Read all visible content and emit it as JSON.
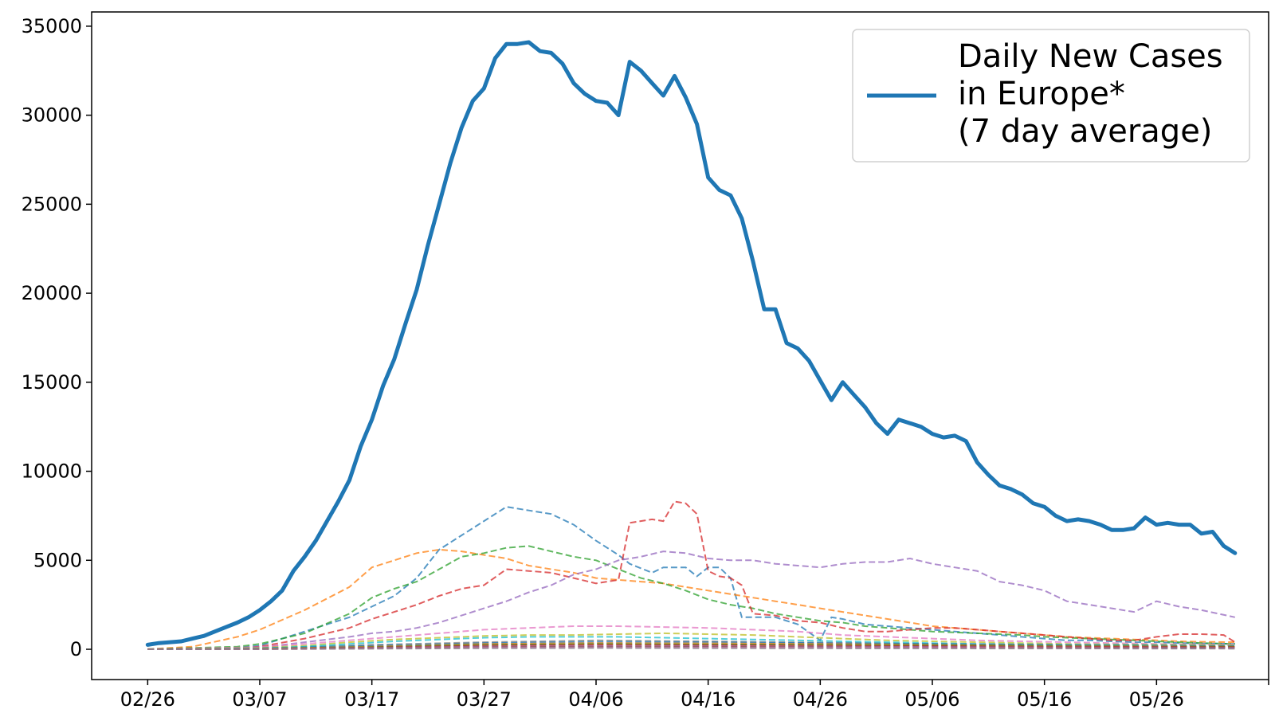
{
  "chart_data": {
    "type": "line",
    "title": "",
    "xlabel": "",
    "ylabel": "",
    "x_tick_labels": [
      "02/26",
      "03/07",
      "03/17",
      "03/27",
      "04/06",
      "04/16",
      "04/26",
      "05/06",
      "05/16",
      "05/26"
    ],
    "x_tick_days": [
      0,
      10,
      20,
      30,
      40,
      50,
      60,
      70,
      80,
      90
    ],
    "xlim": [
      -5,
      100
    ],
    "y_ticks": [
      0,
      5000,
      10000,
      15000,
      20000,
      25000,
      30000,
      35000
    ],
    "y_tick_labels": [
      "0",
      "5000",
      "10000",
      "15000",
      "20000",
      "25000",
      "30000",
      "35000"
    ],
    "ylim": [
      -1700,
      35800
    ],
    "grid": false,
    "legend": {
      "position": "top-right",
      "lines": [
        "Daily New Cases",
        "in Europe*",
        "(7 day average)"
      ]
    },
    "main_series": {
      "name": "Daily New Cases in Europe* (7 day average)",
      "color": "#1f77b4",
      "x": [
        0,
        1,
        2,
        3,
        4,
        5,
        6,
        7,
        8,
        9,
        10,
        11,
        12,
        13,
        14,
        15,
        16,
        17,
        18,
        19,
        20,
        21,
        22,
        23,
        24,
        25,
        26,
        27,
        28,
        29,
        30,
        31,
        32,
        33,
        34,
        35,
        36,
        37,
        38,
        39,
        40,
        41,
        42,
        43,
        44,
        45,
        46,
        47,
        48,
        49,
        50,
        51,
        52,
        53,
        54,
        55,
        56,
        57,
        58,
        59,
        60,
        61,
        62,
        63,
        64,
        65,
        66,
        67,
        68,
        69,
        70,
        71,
        72,
        73,
        74,
        75,
        76,
        77,
        78,
        79,
        80,
        81,
        82,
        83,
        84,
        85,
        86,
        87,
        88,
        89,
        90,
        91,
        92,
        93,
        94,
        95,
        96,
        97
      ],
      "y": [
        250,
        350,
        400,
        450,
        600,
        750,
        1000,
        1250,
        1500,
        1800,
        2200,
        2700,
        3300,
        4400,
        5200,
        6100,
        7200,
        8300,
        9500,
        11400,
        12900,
        14800,
        16300,
        18300,
        20200,
        22700,
        25000,
        27300,
        29300,
        30800,
        31500,
        33200,
        34000,
        34000,
        34100,
        33600,
        33500,
        32900,
        31800,
        31200,
        30800,
        30700,
        30000,
        33000,
        32500,
        31800,
        31100,
        32200,
        31000,
        29500,
        26500,
        25800,
        25500,
        24200,
        21800,
        19100,
        19100,
        17200,
        16900,
        16200,
        15100,
        14000,
        15000,
        14300,
        13600,
        12700,
        12100,
        12900,
        12700,
        12500,
        12100,
        11900,
        12000,
        11700,
        10500,
        9800,
        9200,
        9000,
        8700,
        8200,
        8000,
        7500,
        7200,
        7300,
        7200,
        7000,
        6700,
        6700,
        6800,
        7400,
        7000,
        7100,
        7000,
        7000,
        6500,
        6600,
        5800,
        5400
      ]
    },
    "country_series": [
      {
        "color": "#1f77b4",
        "x": [
          0,
          5,
          8,
          10,
          12,
          14,
          16,
          18,
          20,
          22,
          24,
          26,
          28,
          30,
          32,
          34,
          36,
          38,
          40,
          42,
          43,
          45,
          46,
          47,
          48,
          49,
          50,
          51,
          52,
          53,
          54,
          56,
          58,
          60,
          61,
          62,
          64,
          66,
          68,
          70,
          72,
          74,
          76,
          78,
          80,
          82,
          84,
          86,
          88,
          90,
          92,
          94,
          97
        ],
        "y": [
          20,
          40,
          90,
          200,
          600,
          1000,
          1400,
          1800,
          2400,
          3000,
          4000,
          5600,
          6400,
          7200,
          8000,
          7800,
          7600,
          7000,
          6100,
          5300,
          4800,
          4300,
          4600,
          4600,
          4600,
          4100,
          4600,
          4600,
          4000,
          1800,
          1800,
          1800,
          1400,
          500,
          1800,
          1700,
          1400,
          1300,
          1200,
          1100,
          1000,
          900,
          800,
          700,
          600,
          500,
          500,
          450,
          400,
          400,
          350,
          330,
          300
        ]
      },
      {
        "color": "#ff7f0e",
        "x": [
          0,
          4,
          8,
          10,
          14,
          18,
          20,
          22,
          24,
          26,
          28,
          30,
          32,
          34,
          36,
          38,
          40,
          42,
          44,
          46,
          48,
          50,
          52,
          54,
          56,
          58,
          60,
          62,
          64,
          66,
          68,
          70,
          72,
          74,
          76,
          78,
          80,
          82,
          84,
          86,
          88,
          90,
          92,
          94,
          97
        ],
        "y": [
          10,
          150,
          700,
          1100,
          2200,
          3500,
          4600,
          5000,
          5400,
          5600,
          5500,
          5300,
          5100,
          4700,
          4500,
          4300,
          4000,
          3900,
          3800,
          3700,
          3500,
          3300,
          3100,
          2900,
          2700,
          2500,
          2300,
          2100,
          1900,
          1700,
          1500,
          1300,
          1200,
          1100,
          1000,
          900,
          800,
          700,
          650,
          600,
          550,
          500,
          450,
          420,
          400
        ]
      },
      {
        "color": "#2ca02c",
        "x": [
          0,
          8,
          10,
          14,
          18,
          20,
          22,
          24,
          26,
          28,
          30,
          32,
          34,
          36,
          38,
          40,
          42,
          44,
          46,
          48,
          50,
          52,
          54,
          56,
          58,
          60,
          62,
          64,
          66,
          68,
          70,
          72,
          74,
          76,
          78,
          80,
          82,
          84,
          86,
          88,
          90,
          92,
          94,
          97
        ],
        "y": [
          5,
          150,
          300,
          900,
          2000,
          2900,
          3400,
          3800,
          4500,
          5200,
          5400,
          5700,
          5800,
          5500,
          5200,
          5000,
          4500,
          4000,
          3700,
          3300,
          2800,
          2500,
          2300,
          2000,
          1800,
          1600,
          1500,
          1300,
          1200,
          1100,
          1000,
          950,
          900,
          850,
          800,
          700,
          650,
          600,
          550,
          500,
          450,
          400,
          350,
          300
        ]
      },
      {
        "color": "#d62728",
        "x": [
          0,
          8,
          10,
          14,
          18,
          20,
          22,
          24,
          26,
          28,
          30,
          32,
          34,
          36,
          38,
          40,
          42,
          43,
          45,
          46,
          47,
          48,
          49,
          50,
          51,
          52,
          53,
          54,
          56,
          58,
          60,
          62,
          64,
          66,
          68,
          70,
          72,
          74,
          76,
          78,
          80,
          82,
          84,
          86,
          88,
          90,
          92,
          94,
          96,
          97
        ],
        "y": [
          5,
          60,
          150,
          600,
          1200,
          1700,
          2100,
          2500,
          3000,
          3400,
          3600,
          4500,
          4400,
          4300,
          4000,
          3700,
          3900,
          7100,
          7300,
          7200,
          8300,
          8200,
          7600,
          4400,
          4100,
          4000,
          3600,
          2000,
          1900,
          1600,
          1500,
          1200,
          1000,
          1000,
          1100,
          1200,
          1200,
          1100,
          1000,
          900,
          800,
          700,
          600,
          500,
          500,
          700,
          850,
          850,
          800,
          400
        ]
      },
      {
        "color": "#9467bd",
        "x": [
          0,
          10,
          14,
          18,
          20,
          22,
          24,
          26,
          28,
          30,
          32,
          34,
          36,
          38,
          40,
          42,
          44,
          46,
          48,
          50,
          52,
          54,
          56,
          58,
          60,
          62,
          64,
          66,
          68,
          70,
          72,
          74,
          76,
          78,
          80,
          82,
          84,
          86,
          88,
          90,
          92,
          94,
          97
        ],
        "y": [
          0,
          100,
          400,
          700,
          900,
          1000,
          1200,
          1500,
          1900,
          2300,
          2700,
          3200,
          3600,
          4200,
          4500,
          5000,
          5200,
          5500,
          5400,
          5100,
          5000,
          5000,
          4800,
          4700,
          4600,
          4800,
          4900,
          4900,
          5100,
          4800,
          4600,
          4400,
          3800,
          3600,
          3300,
          2700,
          2500,
          2300,
          2100,
          2700,
          2400,
          2200,
          1800
        ]
      },
      {
        "color": "#8c564b",
        "x": [
          0,
          10,
          20,
          30,
          40,
          50,
          60,
          70,
          80,
          90,
          97
        ],
        "y": [
          0,
          50,
          150,
          250,
          300,
          280,
          250,
          200,
          150,
          120,
          100
        ]
      },
      {
        "color": "#e377c2",
        "x": [
          0,
          10,
          14,
          18,
          22,
          26,
          30,
          34,
          38,
          42,
          46,
          50,
          54,
          58,
          62,
          66,
          70,
          74,
          78,
          82,
          86,
          90,
          94,
          97
        ],
        "y": [
          0,
          120,
          300,
          500,
          700,
          900,
          1100,
          1200,
          1300,
          1300,
          1250,
          1200,
          1100,
          1000,
          800,
          700,
          600,
          500,
          450,
          400,
          350,
          300,
          280,
          250
        ]
      },
      {
        "color": "#7f7f7f",
        "x": [
          0,
          10,
          20,
          30,
          40,
          50,
          60,
          70,
          80,
          90,
          97
        ],
        "y": [
          0,
          50,
          250,
          400,
          500,
          450,
          380,
          300,
          250,
          200,
          180
        ]
      },
      {
        "color": "#bcbd22",
        "x": [
          0,
          10,
          14,
          18,
          22,
          26,
          30,
          34,
          38,
          42,
          46,
          50,
          54,
          58,
          62,
          66,
          70,
          74,
          78,
          82,
          86,
          90,
          94,
          97
        ],
        "y": [
          0,
          80,
          200,
          400,
          550,
          650,
          750,
          800,
          800,
          850,
          900,
          850,
          800,
          700,
          600,
          500,
          450,
          400,
          350,
          300,
          280,
          260,
          240,
          220
        ]
      },
      {
        "color": "#17becf",
        "x": [
          0,
          10,
          14,
          18,
          22,
          26,
          30,
          34,
          38,
          42,
          46,
          50,
          54,
          58,
          62,
          66,
          70,
          74,
          78,
          82,
          86,
          90,
          94,
          97
        ],
        "y": [
          0,
          60,
          150,
          300,
          450,
          550,
          650,
          700,
          700,
          700,
          650,
          600,
          550,
          500,
          450,
          400,
          350,
          300,
          280,
          260,
          240,
          220,
          200,
          180
        ]
      },
      {
        "color": "#1f77b4",
        "x": [
          0,
          10,
          20,
          30,
          40,
          50,
          60,
          70,
          80,
          90,
          97
        ],
        "y": [
          0,
          40,
          200,
          350,
          420,
          400,
          350,
          300,
          250,
          200,
          180
        ]
      },
      {
        "color": "#ff7f0e",
        "x": [
          0,
          10,
          20,
          30,
          40,
          50,
          60,
          70,
          80,
          90,
          97
        ],
        "y": [
          0,
          30,
          150,
          300,
          350,
          330,
          300,
          250,
          200,
          170,
          150
        ]
      },
      {
        "color": "#2ca02c",
        "x": [
          0,
          10,
          20,
          30,
          40,
          50,
          60,
          70,
          80,
          90,
          97
        ],
        "y": [
          0,
          20,
          120,
          250,
          300,
          280,
          250,
          220,
          180,
          150,
          140
        ]
      },
      {
        "color": "#d62728",
        "x": [
          0,
          10,
          20,
          30,
          40,
          50,
          60,
          70,
          80,
          90,
          97
        ],
        "y": [
          0,
          15,
          100,
          200,
          250,
          230,
          200,
          180,
          150,
          130,
          120
        ]
      },
      {
        "color": "#9467bd",
        "x": [
          0,
          10,
          20,
          30,
          40,
          50,
          60,
          70,
          80,
          90,
          97
        ],
        "y": [
          0,
          10,
          80,
          150,
          180,
          170,
          150,
          130,
          110,
          100,
          90
        ]
      },
      {
        "color": "#8c564b",
        "x": [
          0,
          10,
          20,
          30,
          40,
          50,
          60,
          70,
          80,
          90,
          97
        ],
        "y": [
          0,
          10,
          60,
          120,
          150,
          140,
          120,
          100,
          90,
          80,
          70
        ]
      },
      {
        "color": "#e377c2",
        "x": [
          0,
          10,
          20,
          30,
          40,
          50,
          60,
          70,
          80,
          90,
          97
        ],
        "y": [
          0,
          5,
          40,
          80,
          100,
          90,
          80,
          70,
          60,
          50,
          45
        ]
      },
      {
        "color": "#7f7f7f",
        "x": [
          0,
          10,
          20,
          30,
          40,
          50,
          60,
          70,
          80,
          90,
          97
        ],
        "y": [
          0,
          5,
          30,
          60,
          70,
          65,
          55,
          50,
          45,
          40,
          35
        ]
      }
    ]
  }
}
